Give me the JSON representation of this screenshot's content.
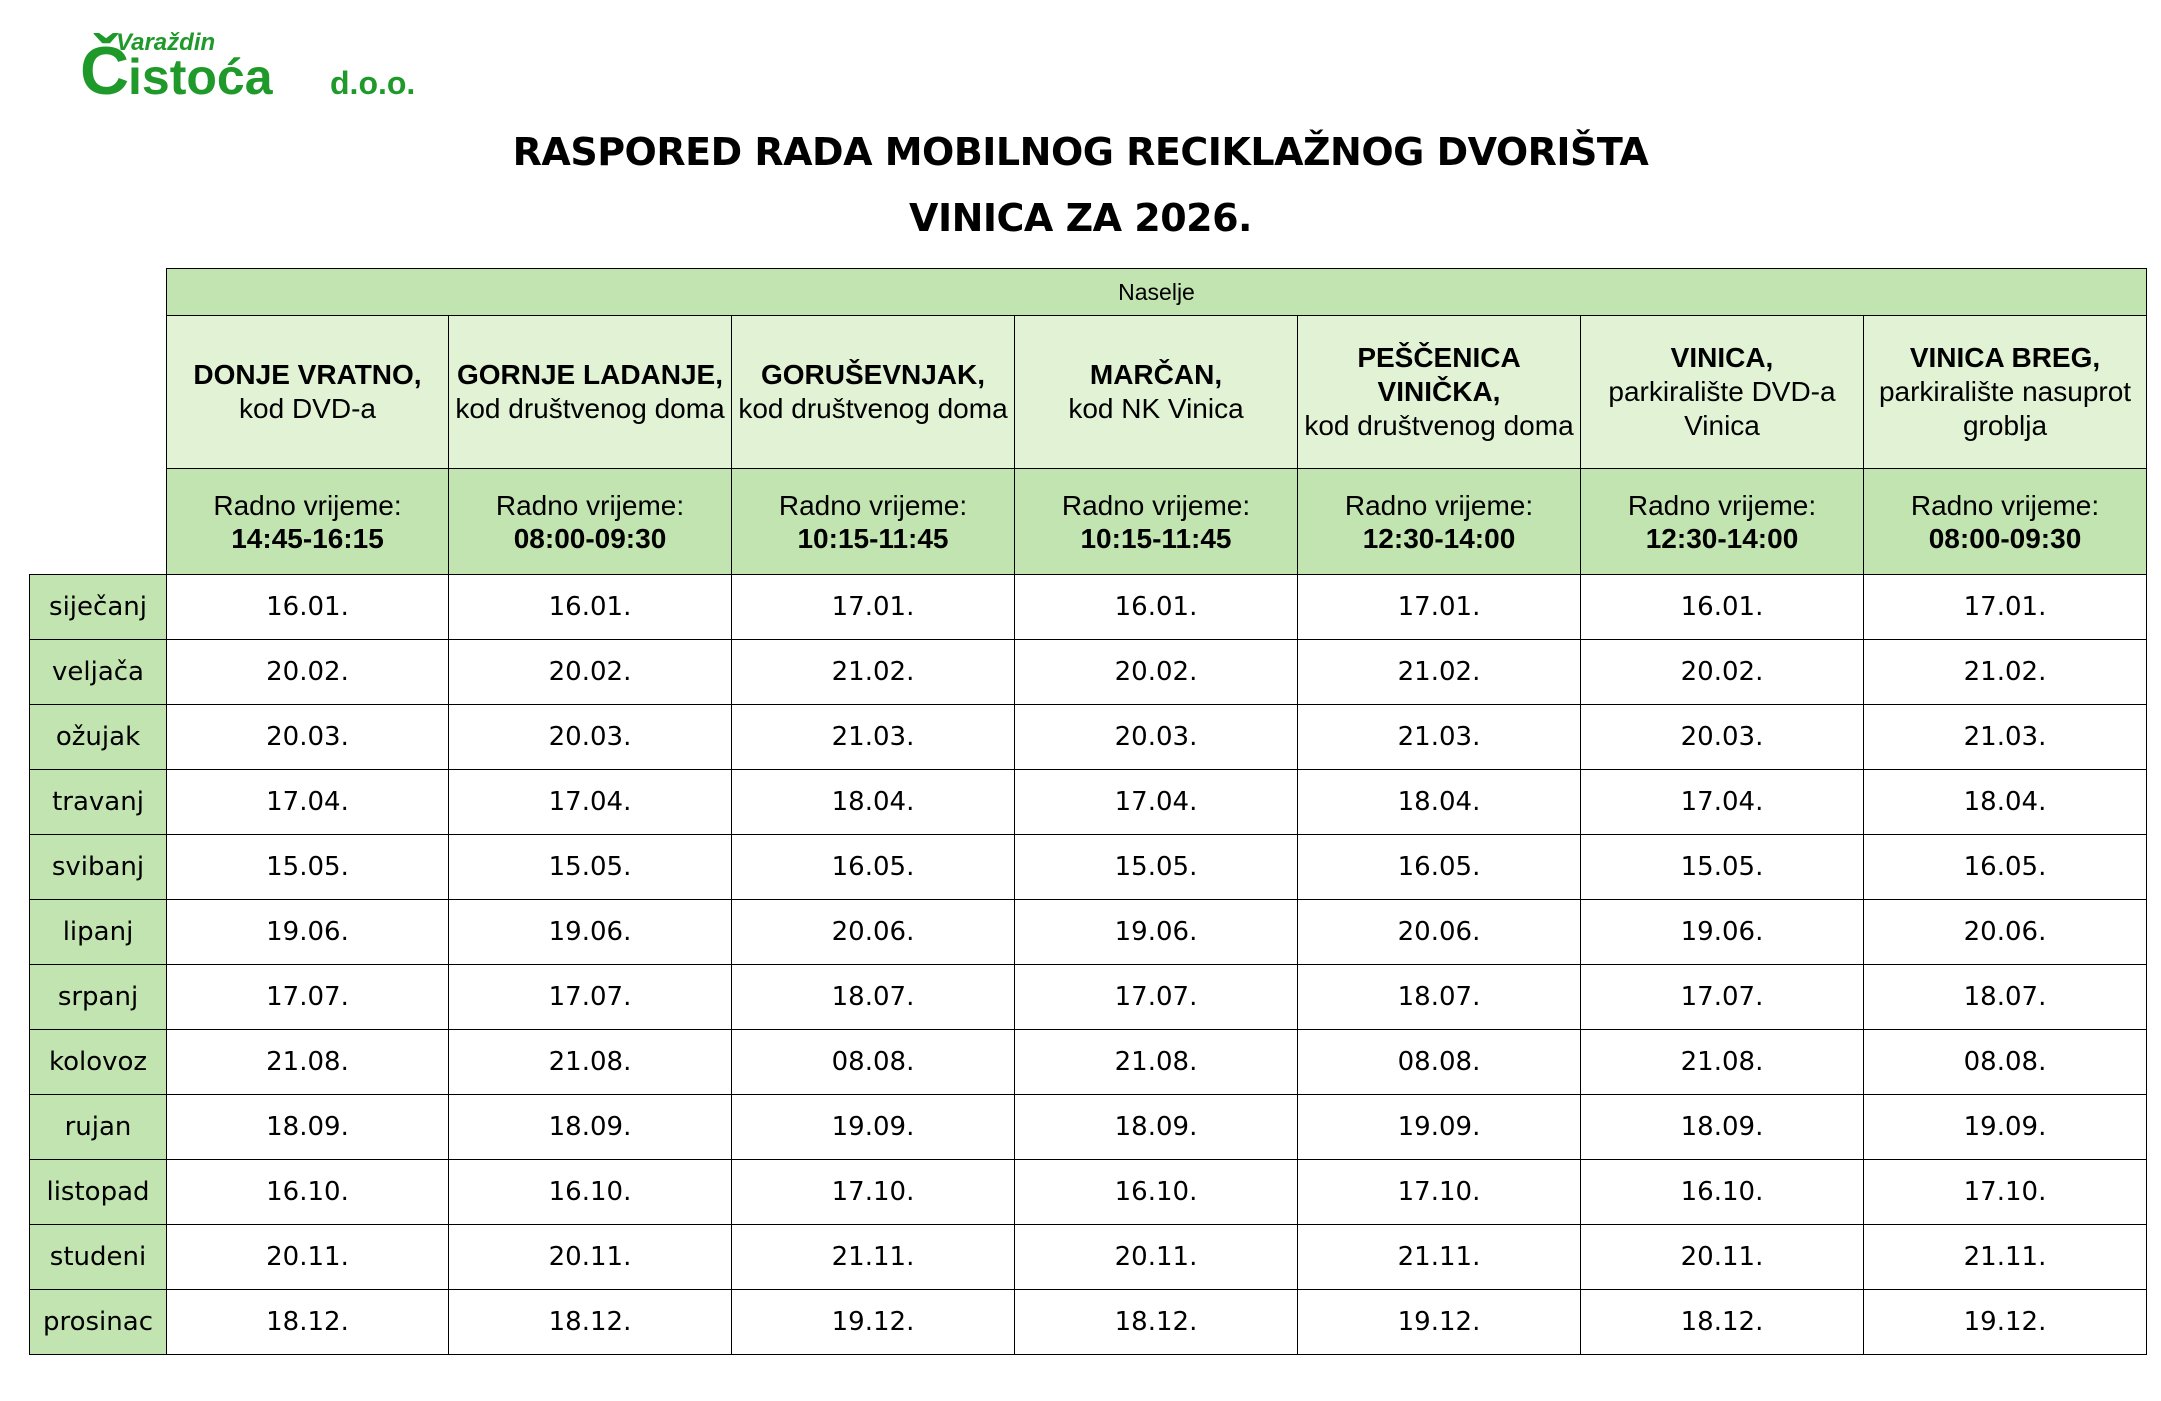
{
  "logo": {
    "city": "Varaždin",
    "name": "istoća",
    "initial": "Č",
    "suffix": "d.o.o.",
    "color": "#1f9a2a"
  },
  "title": {
    "line1": "RASPORED RADA MOBILNOG RECIKLAŽNOG DVORIŠTA",
    "line2": "VINICA ZA 2026."
  },
  "table": {
    "group_header": "Naselje",
    "hours_prefix": "Radno vrijeme:",
    "locations": [
      {
        "name": "DONJE VRATNO,",
        "detail": "kod DVD-a",
        "hours": "14:45-16:15"
      },
      {
        "name": "GORNJE LADANJE,",
        "detail": "kod društvenog doma",
        "hours": "08:00-09:30"
      },
      {
        "name": "GORUŠEVNJAK,",
        "detail": "kod društvenog doma",
        "hours": "10:15-11:45"
      },
      {
        "name": "MARČAN,",
        "detail": "kod NK Vinica",
        "hours": "10:15-11:45"
      },
      {
        "name": "PEŠČENICA VINIČKA,",
        "detail": "kod društvenog doma",
        "hours": "12:30-14:00"
      },
      {
        "name": "VINICA,",
        "detail": "parkiralište DVD-a Vinica",
        "hours": "12:30-14:00"
      },
      {
        "name": "VINICA BREG,",
        "detail": "parkiralište nasuprot groblja",
        "hours": "08:00-09:30"
      }
    ],
    "rows": [
      {
        "month": "siječanj",
        "dates": [
          "16.01.",
          "16.01.",
          "17.01.",
          "16.01.",
          "17.01.",
          "16.01.",
          "17.01."
        ]
      },
      {
        "month": "veljača",
        "dates": [
          "20.02.",
          "20.02.",
          "21.02.",
          "20.02.",
          "21.02.",
          "20.02.",
          "21.02."
        ]
      },
      {
        "month": "ožujak",
        "dates": [
          "20.03.",
          "20.03.",
          "21.03.",
          "20.03.",
          "21.03.",
          "20.03.",
          "21.03."
        ]
      },
      {
        "month": "travanj",
        "dates": [
          "17.04.",
          "17.04.",
          "18.04.",
          "17.04.",
          "18.04.",
          "17.04.",
          "18.04."
        ]
      },
      {
        "month": "svibanj",
        "dates": [
          "15.05.",
          "15.05.",
          "16.05.",
          "15.05.",
          "16.05.",
          "15.05.",
          "16.05."
        ]
      },
      {
        "month": "lipanj",
        "dates": [
          "19.06.",
          "19.06.",
          "20.06.",
          "19.06.",
          "20.06.",
          "19.06.",
          "20.06."
        ]
      },
      {
        "month": "srpanj",
        "dates": [
          "17.07.",
          "17.07.",
          "18.07.",
          "17.07.",
          "18.07.",
          "17.07.",
          "18.07."
        ]
      },
      {
        "month": "kolovoz",
        "dates": [
          "21.08.",
          "21.08.",
          "08.08.",
          "21.08.",
          "08.08.",
          "21.08.",
          "08.08."
        ]
      },
      {
        "month": "rujan",
        "dates": [
          "18.09.",
          "18.09.",
          "19.09.",
          "18.09.",
          "19.09.",
          "18.09.",
          "19.09."
        ]
      },
      {
        "month": "listopad",
        "dates": [
          "16.10.",
          "16.10.",
          "17.10.",
          "16.10.",
          "17.10.",
          "16.10.",
          "17.10."
        ]
      },
      {
        "month": "studeni",
        "dates": [
          "20.11.",
          "20.11.",
          "21.11.",
          "20.11.",
          "21.11.",
          "20.11.",
          "21.11."
        ]
      },
      {
        "month": "prosinac",
        "dates": [
          "18.12.",
          "18.12.",
          "19.12.",
          "18.12.",
          "19.12.",
          "18.12.",
          "19.12."
        ]
      }
    ]
  },
  "colors": {
    "header_green": "#c2e4b0",
    "location_green": "#e1f2d5"
  }
}
